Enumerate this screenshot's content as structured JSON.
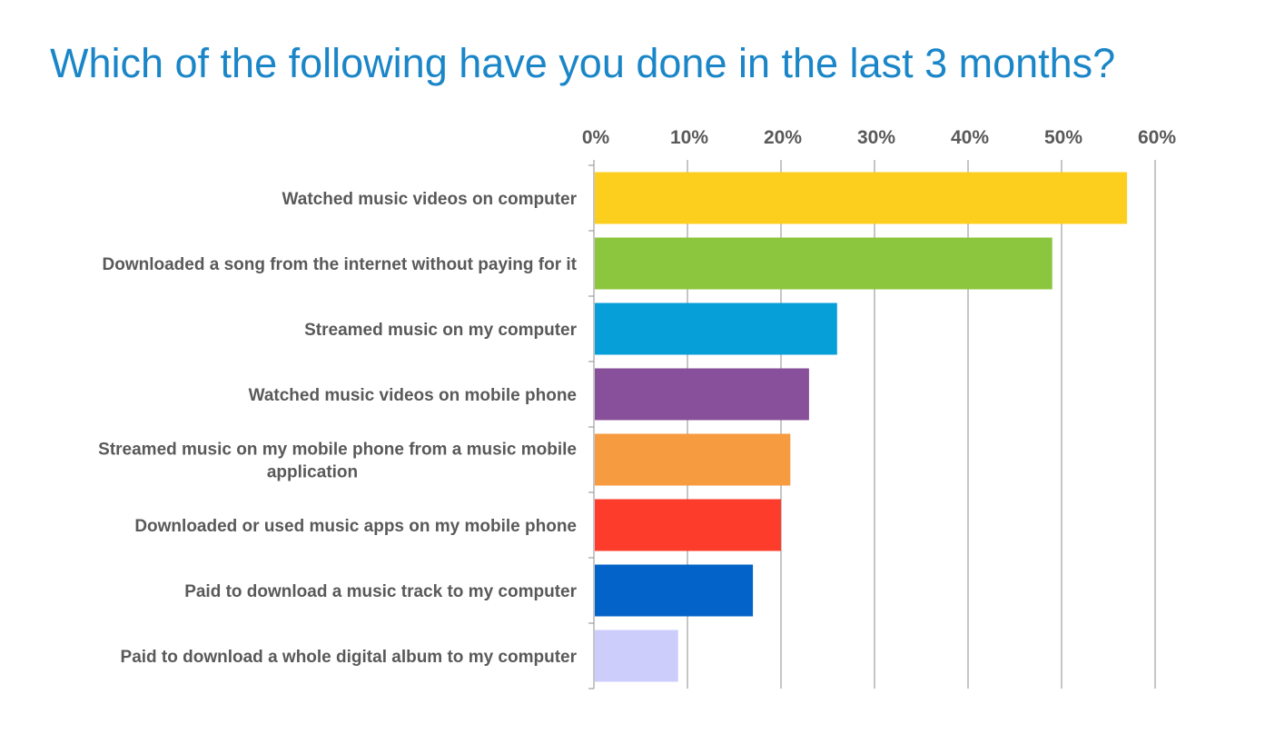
{
  "title": "Which of the following have you done in the last 3 months?",
  "chart_data": {
    "type": "bar",
    "orientation": "horizontal",
    "title": "Which of the following have you done in the last 3 months?",
    "xlabel": "",
    "ylabel": "",
    "xlim": [
      0,
      60
    ],
    "x_ticks": [
      "0%",
      "10%",
      "20%",
      "30%",
      "40%",
      "50%",
      "60%"
    ],
    "x_axis_position": "top",
    "grid": true,
    "legend": "none",
    "categories": [
      [
        "Watched music videos on computer"
      ],
      [
        "Downloaded a song from the internet without paying for it"
      ],
      [
        "Streamed music on my computer"
      ],
      [
        "Watched music videos on mobile phone"
      ],
      [
        "Streamed music on my mobile phone from a music mobile",
        "application"
      ],
      [
        "Downloaded or used music apps on my mobile phone"
      ],
      [
        "Paid to download a music track to my computer"
      ],
      [
        "Paid to download a whole digital album to my computer"
      ]
    ],
    "values": [
      57,
      49,
      26,
      23,
      21,
      20,
      17,
      9
    ],
    "colors": [
      "#fccf1f",
      "#8cc63f",
      "#079fd8",
      "#884f9a",
      "#f79b40",
      "#fd3c2b",
      "#0463c8",
      "#cccdfb"
    ]
  }
}
